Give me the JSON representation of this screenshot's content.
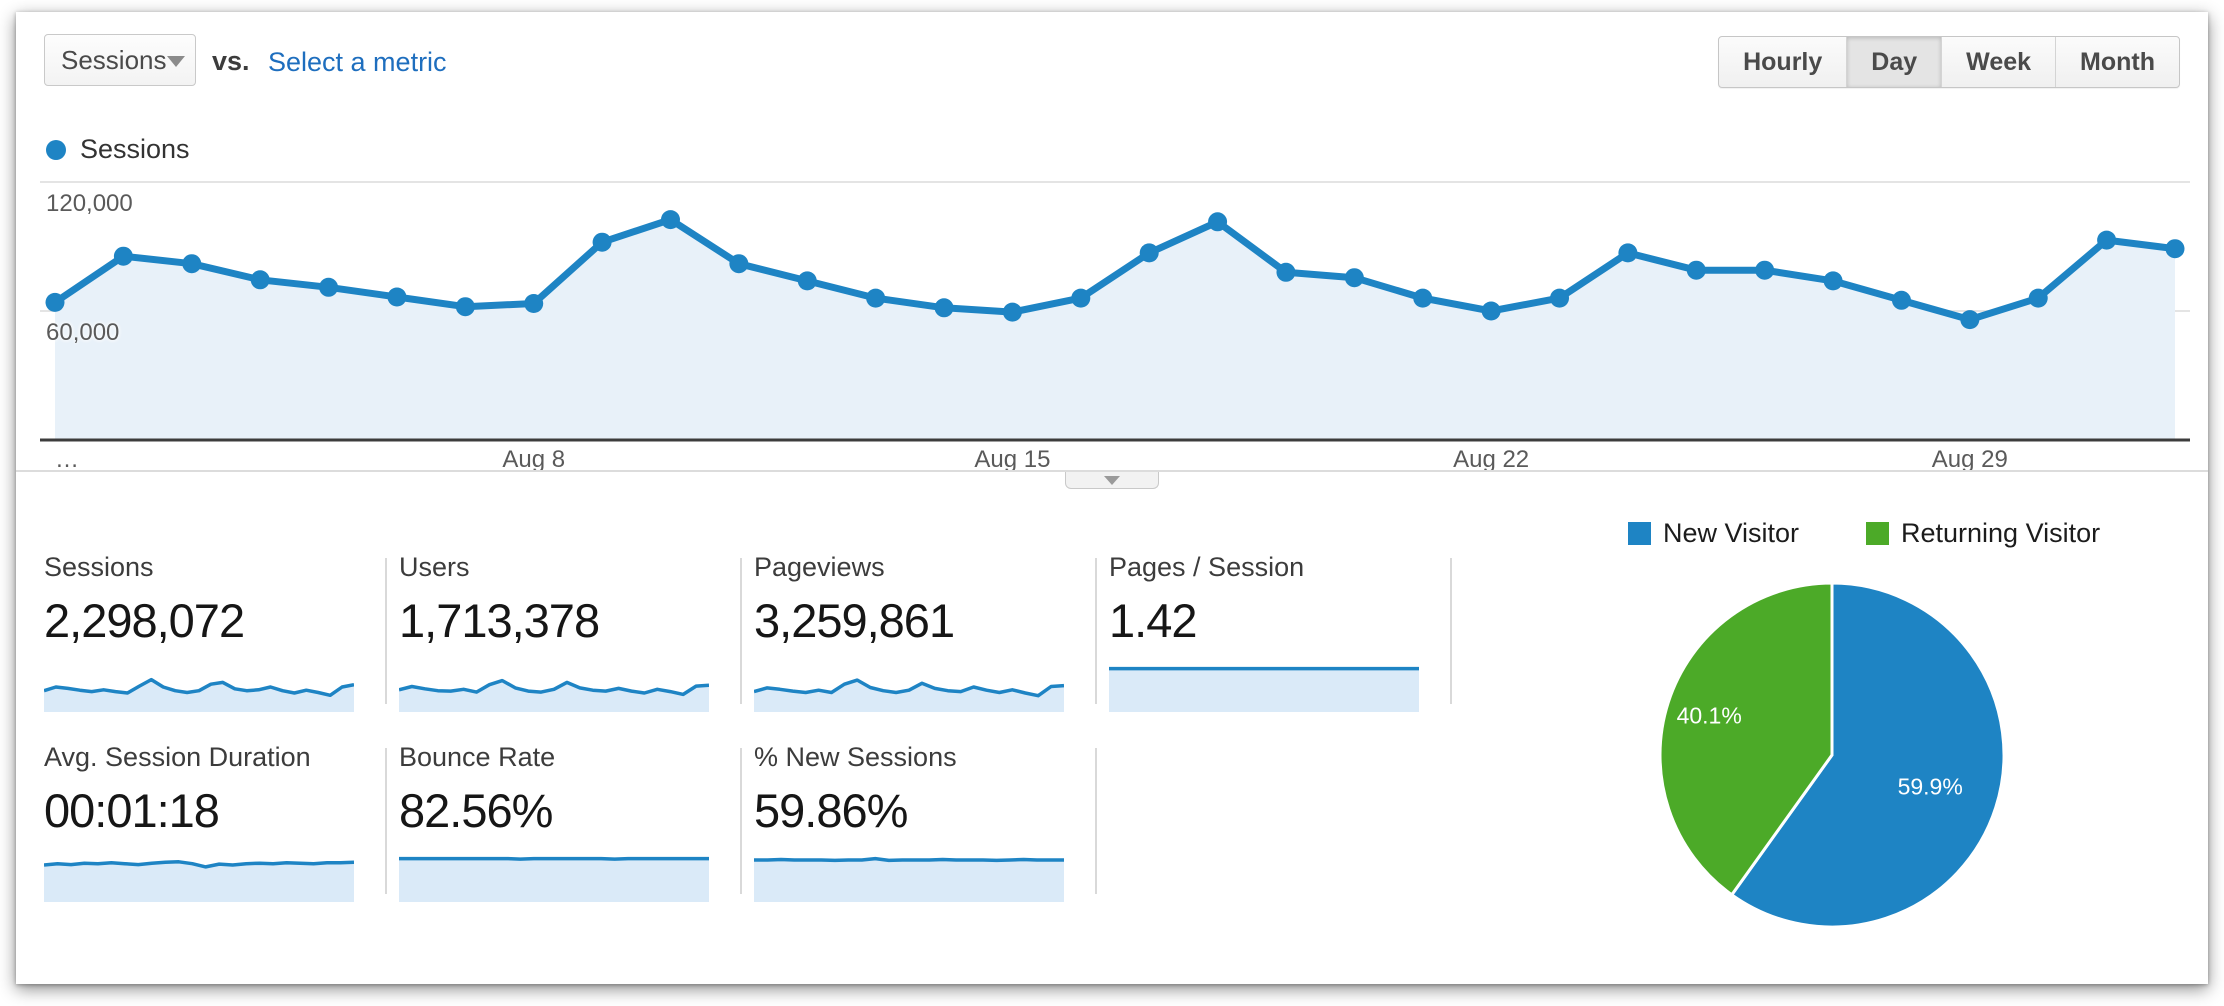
{
  "toolbar": {
    "metric_selector_value": "Sessions",
    "vs_label": "vs.",
    "select_metric_link": "Select a metric",
    "granularity_options": [
      "Hourly",
      "Day",
      "Week",
      "Month"
    ],
    "granularity_selected": "Day"
  },
  "legend": {
    "series_label": "Sessions"
  },
  "colors": {
    "blue": "#1e84c4",
    "green": "#4caa28",
    "area_fill": "#e8f1f9",
    "spark_fill": "#daeaf8",
    "grid": "#e4e4e4",
    "axis": "#3c3c3c",
    "link": "#1e6ebe"
  },
  "chart_data": [
    {
      "type": "line",
      "title": "Sessions by day",
      "series": [
        {
          "name": "Sessions"
        }
      ],
      "x_unit": "day (August)",
      "x_tick_labels": [
        {
          "index": 0,
          "label": "…"
        },
        {
          "index": 7,
          "label": "Aug 8"
        },
        {
          "index": 14,
          "label": "Aug 15"
        },
        {
          "index": 21,
          "label": "Aug 22"
        },
        {
          "index": 28,
          "label": "Aug 29"
        }
      ],
      "y_ticks": [
        {
          "value": 120000,
          "label": "120,000"
        },
        {
          "value": 60000,
          "label": "60,000"
        }
      ],
      "ylim": [
        0,
        131000
      ],
      "grid": true,
      "values": [
        64000,
        85500,
        82000,
        74500,
        71000,
        66500,
        62000,
        63500,
        92000,
        102500,
        82000,
        74000,
        66000,
        61500,
        59500,
        66000,
        87000,
        101500,
        78000,
        75500,
        66000,
        60000,
        66000,
        87000,
        79000,
        79000,
        74000,
        65000,
        56000,
        66000,
        93000,
        89000
      ]
    },
    {
      "type": "pie",
      "title": "New vs Returning Visitors",
      "legend_position": "top",
      "slices": [
        {
          "label": "New Visitor",
          "value_pct": 59.9,
          "data_label": "59.9%",
          "color_key": "blue"
        },
        {
          "label": "Returning Visitor",
          "value_pct": 40.1,
          "data_label": "40.1%",
          "color_key": "green"
        }
      ]
    }
  ],
  "metrics": {
    "row1": [
      {
        "label": "Sessions",
        "value": "2,298,072",
        "spark": [
          0.42,
          0.5,
          0.47,
          0.43,
          0.4,
          0.44,
          0.4,
          0.37,
          0.52,
          0.66,
          0.5,
          0.42,
          0.38,
          0.42,
          0.56,
          0.6,
          0.46,
          0.42,
          0.44,
          0.5,
          0.42,
          0.37,
          0.43,
          0.38,
          0.32,
          0.5,
          0.55
        ]
      },
      {
        "label": "Users",
        "value": "1,713,378",
        "spark": [
          0.44,
          0.51,
          0.46,
          0.42,
          0.41,
          0.45,
          0.39,
          0.55,
          0.64,
          0.48,
          0.41,
          0.39,
          0.45,
          0.6,
          0.48,
          0.43,
          0.41,
          0.47,
          0.41,
          0.37,
          0.45,
          0.4,
          0.34,
          0.52,
          0.54
        ]
      },
      {
        "label": "Pageviews",
        "value": "3,259,861",
        "spark": [
          0.4,
          0.48,
          0.45,
          0.41,
          0.38,
          0.43,
          0.38,
          0.56,
          0.65,
          0.49,
          0.42,
          0.38,
          0.43,
          0.58,
          0.47,
          0.42,
          0.4,
          0.5,
          0.43,
          0.38,
          0.44,
          0.37,
          0.31,
          0.51,
          0.53
        ]
      },
      {
        "label": "Pages / Session",
        "value": "1.42",
        "spark": [
          0.9,
          0.9,
          0.9,
          0.9,
          0.9,
          0.9,
          0.9,
          0.9,
          0.9,
          0.9,
          0.9,
          0.9,
          0.9,
          0.9,
          0.9,
          0.9,
          0.9,
          0.9,
          0.9,
          0.9
        ]
      }
    ],
    "row2": [
      {
        "label": "Avg. Session Duration",
        "value": "00:01:18",
        "spark": [
          0.76,
          0.79,
          0.77,
          0.8,
          0.79,
          0.81,
          0.79,
          0.77,
          0.8,
          0.82,
          0.83,
          0.79,
          0.72,
          0.78,
          0.76,
          0.79,
          0.8,
          0.79,
          0.81,
          0.8,
          0.79,
          0.81,
          0.81,
          0.82
        ]
      },
      {
        "label": "Bounce Rate",
        "value": "82.56%",
        "spark": [
          0.9,
          0.9,
          0.9,
          0.9,
          0.9,
          0.9,
          0.9,
          0.9,
          0.9,
          0.89,
          0.9,
          0.9,
          0.9,
          0.9,
          0.9,
          0.9,
          0.89,
          0.9,
          0.9,
          0.9,
          0.9,
          0.9,
          0.9,
          0.9
        ]
      },
      {
        "label": "% New Sessions",
        "value": "59.86%",
        "spark": [
          0.87,
          0.87,
          0.88,
          0.87,
          0.87,
          0.87,
          0.86,
          0.87,
          0.87,
          0.9,
          0.86,
          0.87,
          0.87,
          0.87,
          0.88,
          0.87,
          0.87,
          0.87,
          0.86,
          0.87,
          0.88,
          0.87,
          0.87,
          0.87
        ]
      }
    ]
  },
  "pie_legend": [
    {
      "label": "New Visitor",
      "color_key": "blue"
    },
    {
      "label": "Returning Visitor",
      "color_key": "green"
    }
  ]
}
